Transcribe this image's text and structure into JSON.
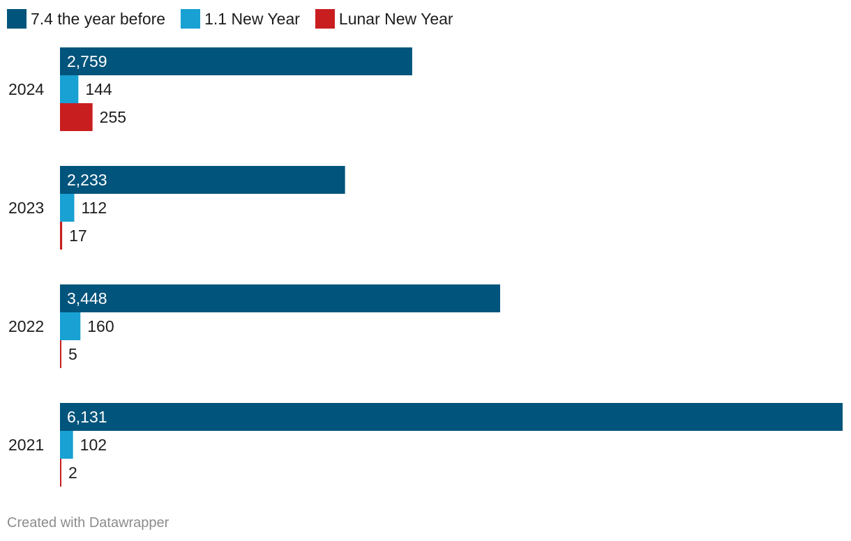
{
  "footer": {
    "credit": "Created with Datawrapper"
  },
  "chart_data": {
    "type": "bar",
    "orientation": "horizontal",
    "grouped": true,
    "title": "",
    "xlabel": "",
    "ylabel": "",
    "legend_position": "top-left",
    "grid": false,
    "xlim": [
      0,
      6131
    ],
    "categories": [
      "2024",
      "2023",
      "2022",
      "2021"
    ],
    "series": [
      {
        "name": "7.4 the year before",
        "color": "#01547b",
        "values": [
          2759,
          2233,
          3448,
          6131
        ],
        "labels": [
          "2,759",
          "2,233",
          "3,448",
          "6,131"
        ]
      },
      {
        "name": "1.1 New Year",
        "color": "#18a1d2",
        "values": [
          144,
          112,
          160,
          102
        ],
        "labels": [
          "144",
          "112",
          "160",
          "102"
        ]
      },
      {
        "name": "Lunar New Year",
        "color": "#c91e20",
        "values": [
          255,
          17,
          5,
          2
        ],
        "labels": [
          "255",
          "17",
          "5",
          "2"
        ]
      }
    ]
  }
}
